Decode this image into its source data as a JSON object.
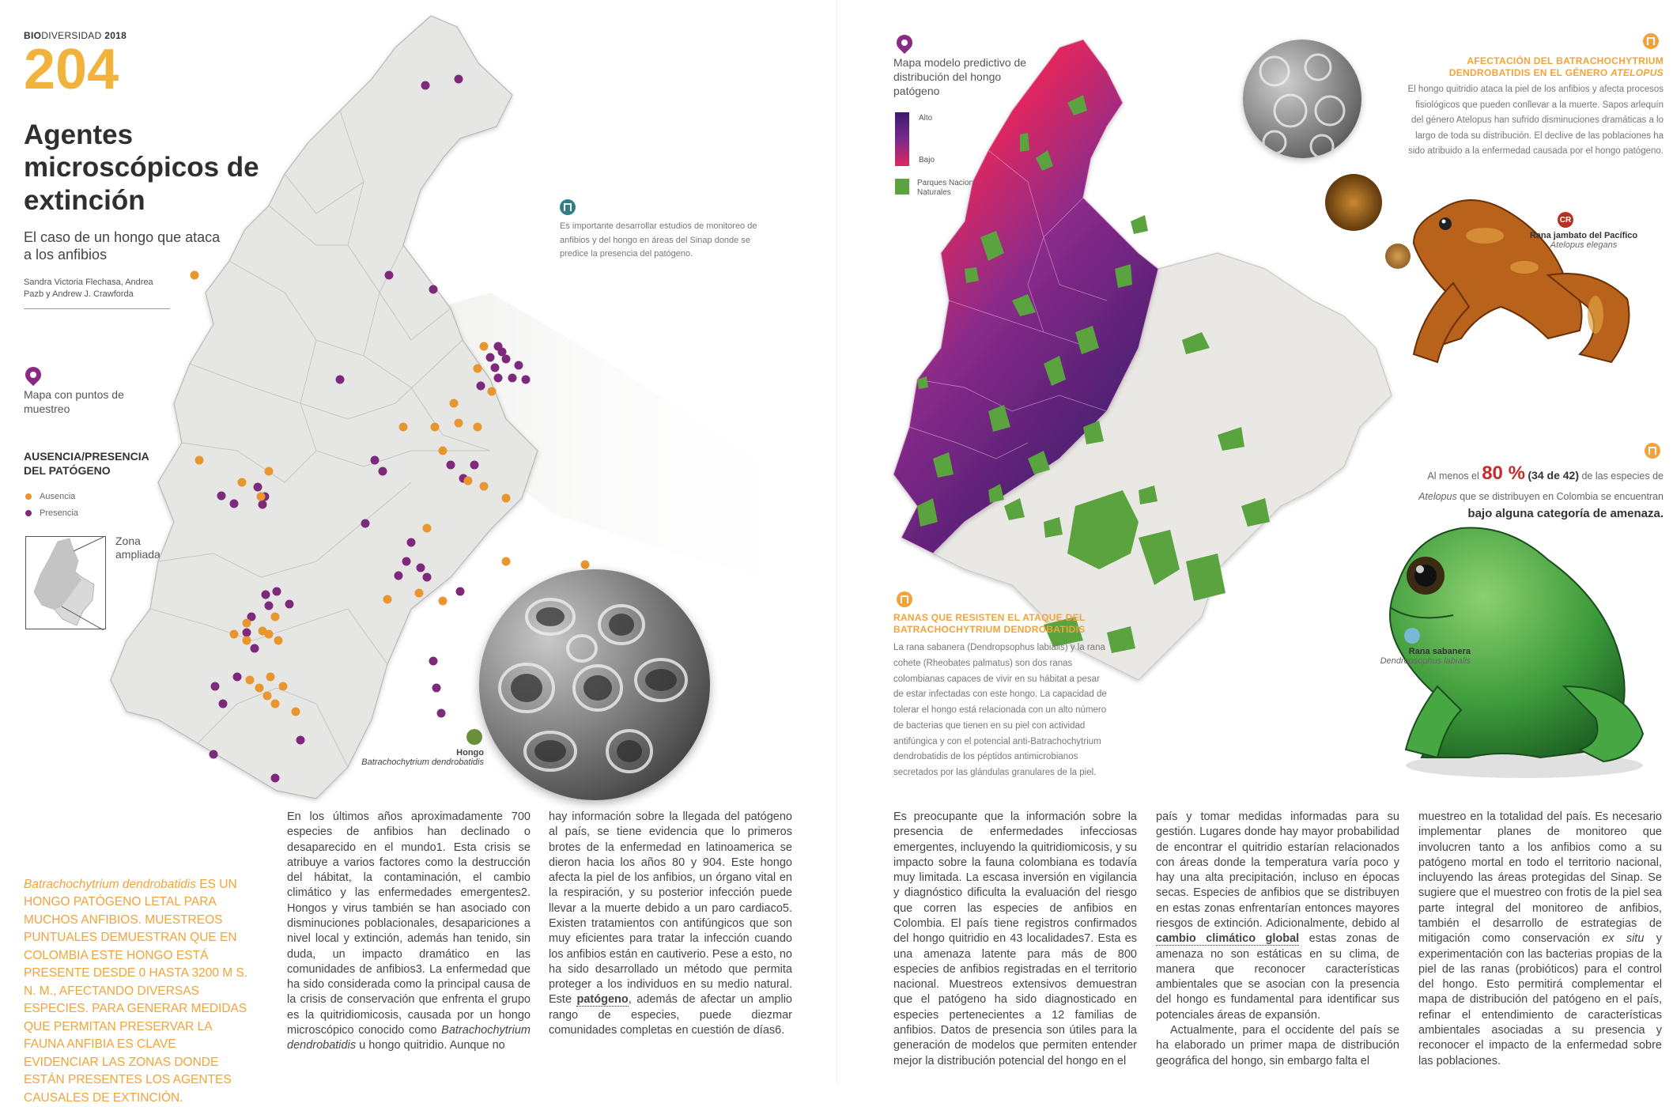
{
  "left_page": {
    "header": {
      "bold": "BIO",
      "rest": "DIVERSIDAD",
      "year": "2018"
    },
    "article_number": "204",
    "title": "Agentes microscópicos de extinción",
    "subtitle": "El caso de un hongo que ataca a los anfibios",
    "authors": "Sandra Victoria Flechasa, Andrea Pazb y Andrew J. Crawforda",
    "map_label": "Mapa con puntos de muestreo",
    "legend": {
      "title": "AUSENCIA/PRESENCIA DEL PATÓGENO",
      "ausencia": "Ausencia",
      "presencia": "Presencia",
      "ausencia_color": "#e8962e",
      "presencia_color": "#7d2a7d"
    },
    "inset_label": "Zona ampliada",
    "note": "Es importante desarrollar estudios de monitoreo de anfibios y del hongo en áreas del Sinap donde se predice la presencia del patógeno.",
    "fungus_label": {
      "name": "Hongo",
      "sci": "Batrachochytrium dendrobatidis"
    },
    "pullquote": {
      "sci": "Batrachochytrium dendrobatidis",
      "text": "es un hongo patógeno letal para muchos anfibios. Muestreos puntuales demuestran que en Colombia este hongo está presente desde 0 hasta 3200 m s. n. m., afectando diversas especies. Para generar medidas que permitan preservar la fauna anfibia es clave evidenciar las zonas donde están presentes los agentes causales de extinción."
    },
    "col1": [
      "En los últimos años aproximadamente 700 especies de anfibios han declinado o desaparecido en el mundo1. Esta crisis se atribuye a varios factores como la destrucción del hábitat, la contaminación, el cambio climático y las enfermedades emergentes2. Hongos y virus también se han asociado con disminuciones poblacionales, desapariciones a nivel local y extinción, además han tenido, sin duda, un impacto dramático en las comunidades de anfibios3. La enfermedad que ha sido considerada como la principal causa de la crisis de conservación que enfrenta el grupo es la quitridiomicosis, causada por un hongo microscópico conocido como ",
      "Batrachochytrium dendrobatidis",
      " u hongo quitridio. Aunque no"
    ],
    "col2": [
      "hay información sobre la llegada del patógeno al país, se tiene evidencia que lo primeros brotes de la enfermedad en latinoamerica se dieron hacia los años 80 y 904. Este hongo afecta la piel de los anfibios, un órgano vital en la respiración, y su posterior infección puede llevar a la muerte debido a un paro cardiaco5. Existen tratamientos con antifúngicos que son muy eficientes para tratar la infección cuando los anfibios están en cautiverio. Pese a esto, no ha sido desarrollado un método que permita proteger a los individuos en su medio natural. Este ",
      "patógeno",
      ", además de afectar un amplio rango de especies, puede diezmar comunidades completas en cuestión de días6."
    ]
  },
  "right_page": {
    "map_label": "Mapa modelo predictivo de distribución del hongo patógeno",
    "scale": {
      "high": "Alto",
      "low": "Bajo",
      "parks": "Parques Nacionales Naturales",
      "park_color": "#5aa33f"
    },
    "atelopus": {
      "title": "Afectación del Batrachochytrium dendrobatidis en el género ",
      "title_it": "Atelopus",
      "text": "El hongo quitridio ataca la piel de los anfibios y afecta procesos fisiológicos que pueden conllevar a la muerte. Sapos arlequín del género Atelopus han sufrido disminuciones dramáticas a lo largo de toda su distribución. El declive de las poblaciones ha sido atribuido a la enfermedad causada por el hongo patógeno."
    },
    "frog1": {
      "badge": "CR",
      "name": "Rana jambato del Pacífico",
      "sci": "Atelopus elegans"
    },
    "stat": {
      "pre": "Al menos el ",
      "pct": "80 %",
      "paren": "(34 de 42)",
      "mid": " de las especies de ",
      "genus": "Atelopus",
      "post": " que se distribuyen en Colombia se encuentran ",
      "bold": "bajo alguna categoría de amenaza."
    },
    "frog2": {
      "name": "Rana sabanera",
      "sci": "Dendropsophus labialis"
    },
    "resist": {
      "title": "Ranas que resisten el ataque del Batrachochytrium dendrobatidis",
      "text": "La rana sabanera (Dendropsophus labialis) y la rana cohete (Rheobates palmatus) son dos ranas colombianas capaces de vivir en su hábitat a pesar de estar infectadas con este hongo. La capacidad de tolerar el hongo está relacionada con un alto número de bacterias que tienen en su piel con actividad antifúngica y con el potencial anti-Batrachochytrium dendrobatidis de los péptidos antimicrobianos secretados por las glándulas granulares de la piel."
    },
    "col3": [
      "Es preocupante que la información sobre la presencia de enfermedades infecciosas emergentes, incluyendo la quitridiomicosis, y su impacto sobre la fauna colombiana es todavía muy limitada. La escasa inversión en vigilancia y diagnóstico dificulta la evaluación del riesgo que corren las especies de anfibios en Colombia. El país tiene registros confirmados del hongo quitridio en 43 localidades7. Esta es una amenaza latente para más de 800 especies de anfibios registradas en el territorio nacional. Muestreos extensivos demuestran que el patógeno ha sido diagnosticado en especies pertenecientes a 12 familias de anfibios. Datos de presencia son útiles para la generación de modelos que permiten entender mejor la distribución potencial del hongo en el"
    ],
    "col4": [
      "país y tomar medidas informadas para su gestión. Lugares donde hay mayor probabilidad de encontrar el quitridio estarían relacionados con áreas donde la temperatura varía poco y hay una alta precipitación, incluso en épocas secas. Especies de anfibios que se distribuyen en estas zonas enfrentarían entonces mayores riesgos de extinción. Adicionalmente, debido al ",
      "cambio climático global",
      " estas zonas de amenaza no son estáticas en su clima, de manera que reconocer características ambientales que se asocian con la presencia del hongo es fundamental para identificar sus potenciales áreas de expansión.",
      "Actualmente, para el occidente del país se ha elaborado un primer mapa de distribución geográfica del hongo, sin embargo falta el"
    ],
    "col5": [
      "muestreo en la totalidad del país. Es necesario implementar planes de monitoreo que involucren tanto a los anfibios como a su patógeno mortal en todo el territorio nacional, incluyendo las áreas protegidas del Sinap. Se sugiere que el muestreo con frotis de la piel sea parte integral del monitoreo de anfibios, también el desarrollo de estrategias de mitigación como conservación ",
      "ex situ",
      " y experimentación con las bacterias propias de la piel de las ranas (probióticos) para el control del hongo. Esto permitirá complementar el mapa de distribución del patógeno en el país, refinar el entendimiento de características ambientales asociadas a su presencia y reconocer el impacto de la enfermedad sobre las poblaciones."
    ]
  }
}
